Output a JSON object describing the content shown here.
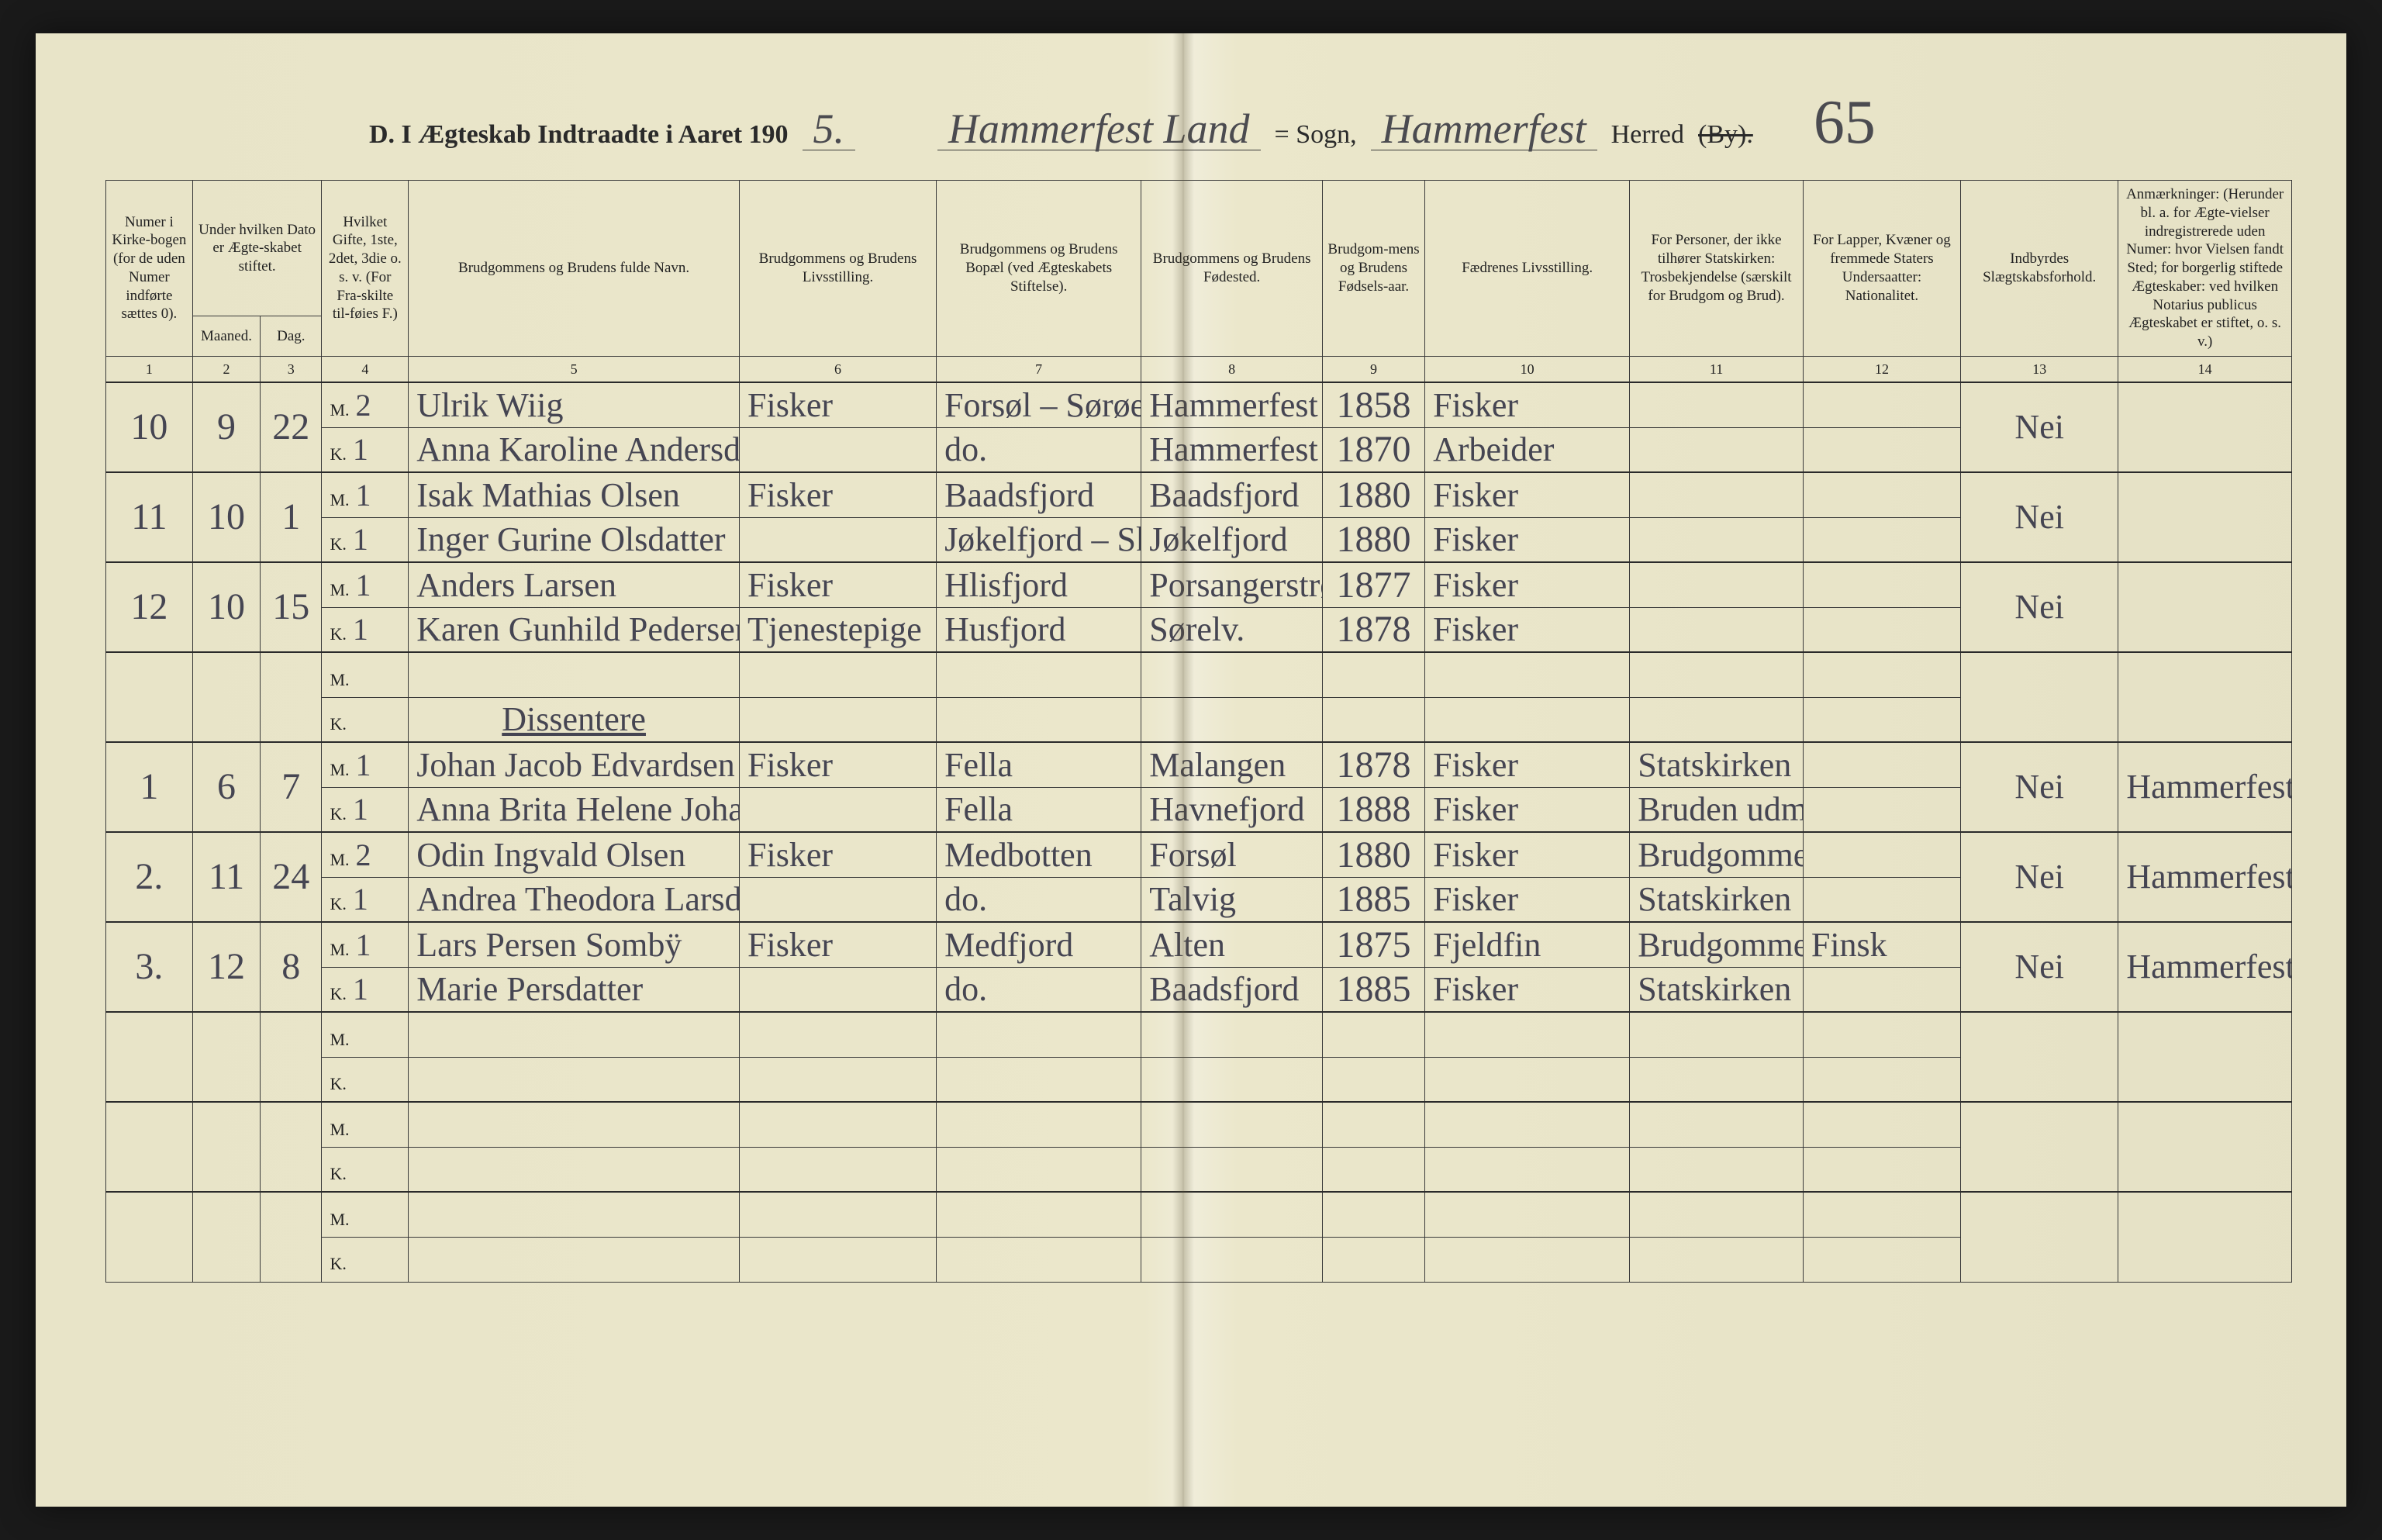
{
  "header": {
    "title_prefix": "D.  I Ægteskab Indtraadte i Aaret 190",
    "year_suffix": "5.",
    "parish_hand": "Hammerfest Land",
    "sogn_label": "= Sogn,",
    "district_hand": "Hammerfest",
    "herred_label": "Herred",
    "by_struck": "(By).",
    "page_number": "65"
  },
  "columns": [
    {
      "n": "1",
      "label": "Numer i Kirke-bogen (for de uden Numer indførte sættes 0)."
    },
    {
      "n": "2",
      "label": "Under hvilken Dato er Ægte-skabet stiftet.",
      "sub": [
        "Maaned.",
        "Dag."
      ]
    },
    {
      "n": "3",
      "label": ""
    },
    {
      "n": "4",
      "label": "Hvilket Gifte, 1ste, 2det, 3die o. s. v. (For Fra-skilte til-føies F.)"
    },
    {
      "n": "5",
      "label": "Brudgommens og Brudens fulde Navn."
    },
    {
      "n": "6",
      "label": "Brudgommens og Brudens Livsstilling."
    },
    {
      "n": "7",
      "label": "Brudgommens og Brudens Bopæl (ved Ægteskabets Stiftelse)."
    },
    {
      "n": "8",
      "label": "Brudgommens og Brudens Fødested."
    },
    {
      "n": "9",
      "label": "Brudgom-mens og Brudens Fødsels-aar."
    },
    {
      "n": "10",
      "label": "Fædrenes Livsstilling."
    },
    {
      "n": "11",
      "label": "For Personer, der ikke tilhører Statskirken: Trosbekjendelse (særskilt for Brudgom og Brud)."
    },
    {
      "n": "12",
      "label": "For Lapper, Kvæner og fremmede Staters Undersaatter: Nationalitet."
    },
    {
      "n": "13",
      "label": "Indbyrdes Slægtskabsforhold."
    },
    {
      "n": "14",
      "label": "Anmærkninger: (Herunder bl. a. for Ægte-vielser indregistrerede uden Numer: hvor Vielsen fandt Sted; for borgerlig stiftede Ægteskaber: ved hvilken Notarius publicus Ægteskabet er stiftet, o. s. v.)"
    }
  ],
  "label_M": "M.",
  "label_K": "K.",
  "rows": [
    {
      "no": "10",
      "mnd": "9",
      "dag": "22",
      "m": {
        "g": "2",
        "navn": "Ulrik Wiig",
        "stilling": "Fisker",
        "bopel": "Forsøl – Sørøen",
        "fsted": "Hammerfest",
        "faar": "1858",
        "far": "Fisker",
        "tro": "",
        "nat": ""
      },
      "k": {
        "g": "1",
        "navn": "Anna Karoline Andersdtr.",
        "stilling": "",
        "bopel": "do.",
        "fsted": "Hammerfest",
        "faar": "1870",
        "far": "Arbeider",
        "tro": "",
        "nat": ""
      },
      "sl": "Nei",
      "anm": ""
    },
    {
      "no": "11",
      "mnd": "10",
      "dag": "1",
      "m": {
        "g": "1",
        "navn": "Isak Mathias Olsen",
        "stilling": "Fisker",
        "bopel": "Baadsfjord",
        "fsted": "Baadsfjord",
        "faar": "1880",
        "far": "Fisker",
        "tro": "",
        "nat": ""
      },
      "k": {
        "g": "1",
        "navn": "Inger Gurine Olsdatter",
        "stilling": "",
        "bopel": "Jøkelfjord – Skjervø",
        "fsted": "Jøkelfjord",
        "faar": "1880",
        "far": "Fisker",
        "tro": "",
        "nat": ""
      },
      "sl": "Nei",
      "anm": ""
    },
    {
      "no": "12",
      "mnd": "10",
      "dag": "15",
      "m": {
        "g": "1",
        "navn": "Anders Larsen",
        "stilling": "Fisker",
        "bopel": "Hlisfjord",
        "fsted": "Porsangerstrømmen",
        "faar": "1877",
        "far": "Fisker",
        "tro": "",
        "nat": ""
      },
      "k": {
        "g": "1",
        "navn": "Karen Gunhild Pedersen",
        "stilling": "Tjenestepige",
        "bopel": "Husfjord",
        "fsted": "Sørelv.",
        "faar": "1878",
        "far": "Fisker",
        "tro": "",
        "nat": ""
      },
      "sl": "Nei",
      "anm": ""
    },
    {
      "no": "",
      "mnd": "",
      "dag": "",
      "m": {
        "g": "",
        "navn": "",
        "stilling": "",
        "bopel": "",
        "fsted": "",
        "faar": "",
        "far": "",
        "tro": "",
        "nat": ""
      },
      "k": {
        "g": "",
        "navn": "Dissentere",
        "stilling": "",
        "bopel": "",
        "fsted": "",
        "faar": "",
        "far": "",
        "tro": "",
        "nat": ""
      },
      "sl": "",
      "anm": "",
      "heading": true
    },
    {
      "no": "1",
      "mnd": "6",
      "dag": "7",
      "m": {
        "g": "1",
        "navn": "Johan Jacob Edvardsen",
        "stilling": "Fisker",
        "bopel": "Fella",
        "fsted": "Malangen",
        "faar": "1878",
        "far": "Fisker",
        "tro": "Statskirken",
        "nat": ""
      },
      "k": {
        "g": "1",
        "navn": "Anna Brita Helene Johansdtr.",
        "stilling": "",
        "bopel": "Fella",
        "fsted": "Havnefjord",
        "faar": "1888",
        "far": "Fisker",
        "tro": "Bruden udmeldt",
        "nat": ""
      },
      "sl": "Nei",
      "anm": "Hammerfest Sorenskriver"
    },
    {
      "no": "2.",
      "mnd": "11",
      "dag": "24",
      "m": {
        "g": "2",
        "navn": "Odin Ingvald Olsen",
        "stilling": "Fisker",
        "bopel": "Medbotten",
        "fsted": "Forsøl",
        "faar": "1880",
        "far": "Fisker",
        "tro": "Brudgommen udmeldt",
        "nat": ""
      },
      "k": {
        "g": "1",
        "navn": "Andrea Theodora Larsdatter",
        "stilling": "",
        "bopel": "do.",
        "fsted": "Talvig",
        "faar": "1885",
        "far": "Fisker",
        "tro": "Statskirken",
        "nat": ""
      },
      "sl": "Nei",
      "anm": "Hammerfest Sorenskriver"
    },
    {
      "no": "3.",
      "mnd": "12",
      "dag": "8",
      "m": {
        "g": "1",
        "navn": "Lars Persen Sombÿ",
        "stilling": "Fisker",
        "bopel": "Medfjord",
        "fsted": "Alten",
        "faar": "1875",
        "far": "Fjeldfin",
        "tro": "Brudgommen udmeldt",
        "nat": "Finsk"
      },
      "k": {
        "g": "1",
        "navn": "Marie Persdatter",
        "stilling": "",
        "bopel": "do.",
        "fsted": "Baadsfjord",
        "faar": "1885",
        "far": "Fisker",
        "tro": "Statskirken",
        "nat": ""
      },
      "sl": "Nei",
      "anm": "Hammerfest Sorenskriver"
    },
    {
      "no": "",
      "mnd": "",
      "dag": "",
      "m": {
        "g": "",
        "navn": "",
        "stilling": "",
        "bopel": "",
        "fsted": "",
        "faar": "",
        "far": "",
        "tro": "",
        "nat": ""
      },
      "k": {
        "g": "",
        "navn": "",
        "stilling": "",
        "bopel": "",
        "fsted": "",
        "faar": "",
        "far": "",
        "tro": "",
        "nat": ""
      },
      "sl": "",
      "anm": ""
    },
    {
      "no": "",
      "mnd": "",
      "dag": "",
      "m": {
        "g": "",
        "navn": "",
        "stilling": "",
        "bopel": "",
        "fsted": "",
        "faar": "",
        "far": "",
        "tro": "",
        "nat": ""
      },
      "k": {
        "g": "",
        "navn": "",
        "stilling": "",
        "bopel": "",
        "fsted": "",
        "faar": "",
        "far": "",
        "tro": "",
        "nat": ""
      },
      "sl": "",
      "anm": ""
    },
    {
      "no": "",
      "mnd": "",
      "dag": "",
      "m": {
        "g": "",
        "navn": "",
        "stilling": "",
        "bopel": "",
        "fsted": "",
        "faar": "",
        "far": "",
        "tro": "",
        "nat": ""
      },
      "k": {
        "g": "",
        "navn": "",
        "stilling": "",
        "bopel": "",
        "fsted": "",
        "faar": "",
        "far": "",
        "tro": "",
        "nat": ""
      },
      "sl": "",
      "anm": ""
    }
  ]
}
